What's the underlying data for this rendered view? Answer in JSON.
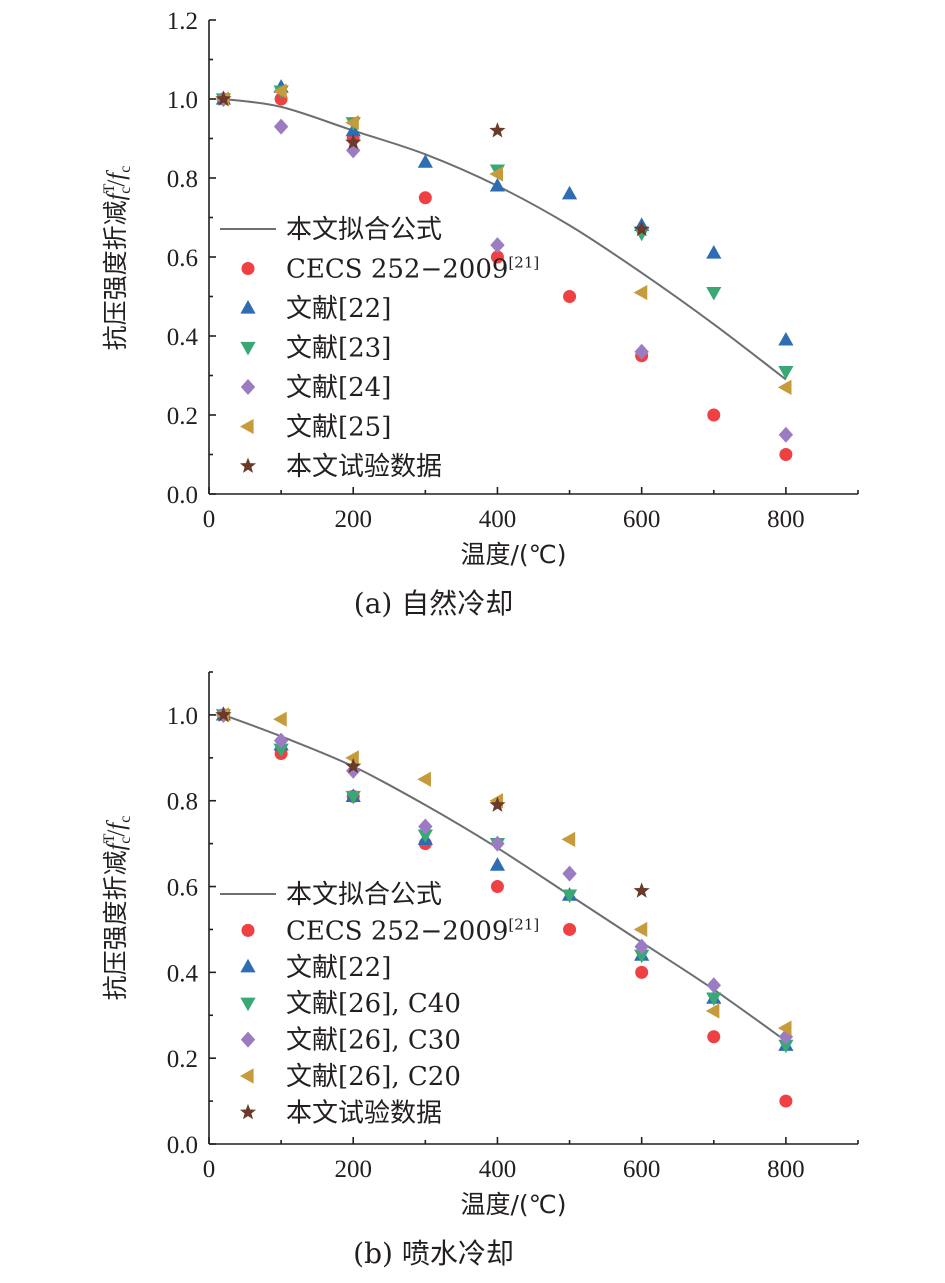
{
  "colors": {
    "fit": "#6d6e71",
    "cecs": "#ef4043",
    "triangle_up": "#2e6db4",
    "triangle_down": "#3aa874",
    "diamond": "#9b7cc2",
    "triangle_left": "#c79a3b",
    "star": "#6b3a2b"
  },
  "chart_data": [
    {
      "type": "scatter",
      "caption": "(a) 自然冷却",
      "xlabel": "温度/(℃)",
      "ylabel": "抗压强度折减f_c^T/f_c",
      "ylabel_parts": {
        "main": "抗压强度折减",
        "f1": "f",
        "sub1": "c",
        "sup1": "T",
        "slash": "/",
        "f2": "f",
        "sub2": "c"
      },
      "xlim": [
        0,
        900
      ],
      "ylim": [
        0,
        1.2
      ],
      "xticks": [
        0,
        200,
        400,
        600,
        800
      ],
      "xtick_labels": [
        "0",
        "200",
        "400",
        "600",
        "800"
      ],
      "yticks": [
        0.0,
        0.2,
        0.4,
        0.6,
        0.8,
        1.0,
        1.2
      ],
      "ytick_labels": [
        "0.0",
        "0.2",
        "0.4",
        "0.6",
        "0.8",
        "1.0",
        "1.2"
      ],
      "legend_position": "middle-left",
      "series": [
        {
          "name": "本文拟合公式",
          "marker": "line",
          "color": "#6d6e71",
          "x": [
            20,
            100,
            200,
            300,
            400,
            500,
            600,
            700,
            800
          ],
          "y": [
            1.0,
            0.98,
            0.92,
            0.86,
            0.78,
            0.68,
            0.56,
            0.43,
            0.29
          ]
        },
        {
          "name": "CECS 252−2009",
          "name_sup": "[21]",
          "marker": "circle",
          "color": "#ef4043",
          "x": [
            20,
            100,
            200,
            300,
            400,
            500,
            600,
            700,
            800
          ],
          "y": [
            1.0,
            1.0,
            0.9,
            0.75,
            0.6,
            0.5,
            0.35,
            0.2,
            0.1
          ]
        },
        {
          "name": "文献[22]",
          "marker": "triangle-up",
          "color": "#2e6db4",
          "x": [
            20,
            100,
            200,
            300,
            400,
            500,
            600,
            700,
            800
          ],
          "y": [
            1.0,
            1.03,
            0.92,
            0.84,
            0.78,
            0.76,
            0.68,
            0.61,
            0.39
          ]
        },
        {
          "name": "文献[23]",
          "marker": "triangle-down",
          "color": "#3aa874",
          "x": [
            20,
            100,
            200,
            400,
            600,
            700,
            800
          ],
          "y": [
            1.0,
            1.02,
            0.94,
            0.82,
            0.66,
            0.51,
            0.31
          ]
        },
        {
          "name": "文献[24]",
          "marker": "diamond",
          "color": "#9b7cc2",
          "x": [
            20,
            100,
            200,
            400,
            600,
            800
          ],
          "y": [
            1.0,
            0.93,
            0.87,
            0.63,
            0.36,
            0.15
          ]
        },
        {
          "name": "文献[25]",
          "marker": "triangle-left",
          "color": "#c79a3b",
          "x": [
            20,
            100,
            200,
            400,
            600,
            800
          ],
          "y": [
            1.0,
            1.02,
            0.94,
            0.81,
            0.51,
            0.27
          ]
        },
        {
          "name": "本文试验数据",
          "marker": "star",
          "color": "#6b3a2b",
          "x": [
            20,
            200,
            400,
            600
          ],
          "y": [
            1.0,
            0.89,
            0.92,
            0.67
          ]
        }
      ]
    },
    {
      "type": "scatter",
      "caption": "(b) 喷水冷却",
      "xlabel": "温度/(℃)",
      "ylabel": "抗压强度折减f_c^T/f_c",
      "ylabel_parts": {
        "main": "抗压强度折减",
        "f1": "f",
        "sub1": "c",
        "sup1": "T",
        "slash": "/",
        "f2": "f",
        "sub2": "c"
      },
      "xlim": [
        0,
        900
      ],
      "ylim": [
        0,
        1.1
      ],
      "xticks": [
        0,
        200,
        400,
        600,
        800
      ],
      "xtick_labels": [
        "0",
        "200",
        "400",
        "600",
        "800"
      ],
      "yticks": [
        0.0,
        0.2,
        0.4,
        0.6,
        0.8,
        1.0
      ],
      "ytick_labels": [
        "0.0",
        "0.2",
        "0.4",
        "0.6",
        "0.8",
        "1.0"
      ],
      "legend_position": "lower-left",
      "series": [
        {
          "name": "本文拟合公式",
          "marker": "line",
          "color": "#6d6e71",
          "x": [
            20,
            100,
            200,
            300,
            400,
            500,
            600,
            700,
            800
          ],
          "y": [
            1.0,
            0.95,
            0.88,
            0.79,
            0.69,
            0.58,
            0.47,
            0.36,
            0.24
          ]
        },
        {
          "name": "CECS 252−2009",
          "name_sup": "[21]",
          "marker": "circle",
          "color": "#ef4043",
          "x": [
            20,
            100,
            200,
            300,
            400,
            500,
            600,
            700,
            800
          ],
          "y": [
            1.0,
            0.91,
            0.81,
            0.7,
            0.6,
            0.5,
            0.4,
            0.25,
            0.1
          ]
        },
        {
          "name": "文献[22]",
          "marker": "triangle-up",
          "color": "#2e6db4",
          "x": [
            20,
            100,
            200,
            300,
            400,
            500,
            600,
            700,
            800
          ],
          "y": [
            1.0,
            0.93,
            0.81,
            0.71,
            0.65,
            0.58,
            0.44,
            0.34,
            0.23
          ]
        },
        {
          "name": "文献[26], C40",
          "marker": "triangle-down",
          "color": "#3aa874",
          "x": [
            20,
            100,
            200,
            300,
            400,
            500,
            600,
            700,
            800
          ],
          "y": [
            1.0,
            0.92,
            0.81,
            0.72,
            0.7,
            0.58,
            0.44,
            0.34,
            0.23
          ]
        },
        {
          "name": "文献[26], C30",
          "marker": "diamond",
          "color": "#9b7cc2",
          "x": [
            20,
            100,
            200,
            300,
            400,
            500,
            600,
            700,
            800
          ],
          "y": [
            1.0,
            0.94,
            0.87,
            0.74,
            0.7,
            0.63,
            0.46,
            0.37,
            0.25
          ]
        },
        {
          "name": "文献[26], C20",
          "marker": "triangle-left",
          "color": "#c79a3b",
          "x": [
            20,
            100,
            200,
            300,
            400,
            500,
            600,
            700,
            800
          ],
          "y": [
            1.0,
            0.99,
            0.9,
            0.85,
            0.8,
            0.71,
            0.5,
            0.31,
            0.27
          ]
        },
        {
          "name": "本文试验数据",
          "marker": "star",
          "color": "#6b3a2b",
          "x": [
            20,
            200,
            400,
            600
          ],
          "y": [
            1.0,
            0.88,
            0.79,
            0.59
          ]
        }
      ]
    }
  ]
}
